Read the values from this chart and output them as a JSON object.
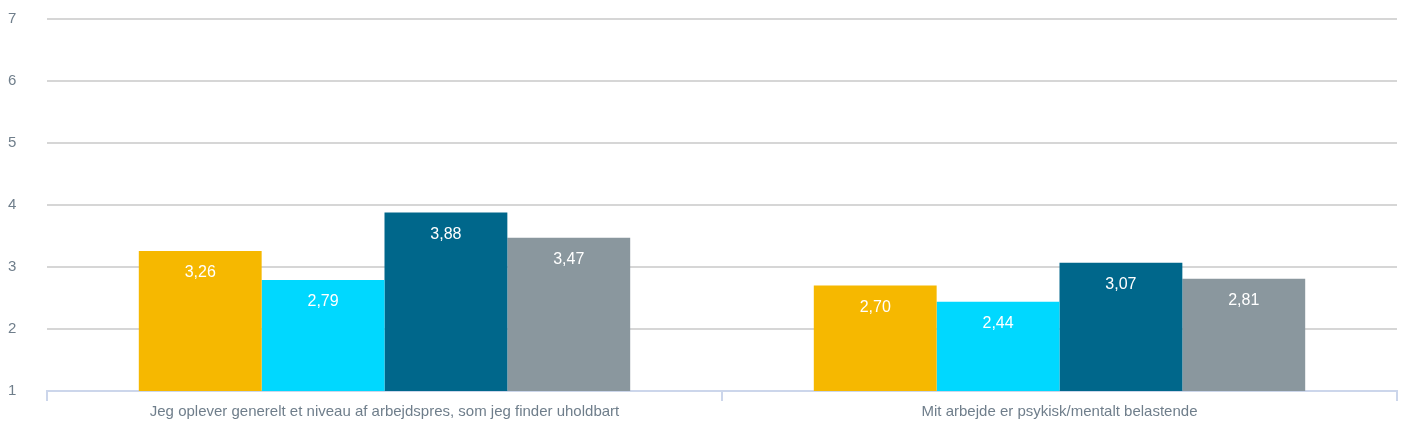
{
  "chart_data": {
    "type": "bar",
    "categories": [
      "Jeg oplever generelt et niveau af arbejdspres, som jeg finder uholdbart",
      "Mit arbejde er psykisk/mentalt belastende"
    ],
    "series": [
      {
        "color": "#f6b800",
        "values": [
          3.26,
          2.7
        ],
        "value_labels": [
          "3,26",
          "2,70"
        ]
      },
      {
        "color": "#00d8ff",
        "values": [
          2.79,
          2.44
        ],
        "value_labels": [
          "2,79",
          "2,44"
        ]
      },
      {
        "color": "#00678b",
        "values": [
          3.88,
          3.07
        ],
        "value_labels": [
          "3,88",
          "3,07"
        ]
      },
      {
        "color": "#8a979e",
        "values": [
          3.47,
          2.81
        ],
        "value_labels": [
          "3,47",
          "2,81"
        ]
      }
    ],
    "ylim": [
      1,
      7
    ],
    "yticks": [
      1,
      2,
      3,
      4,
      5,
      6,
      7
    ],
    "grid": "y"
  }
}
